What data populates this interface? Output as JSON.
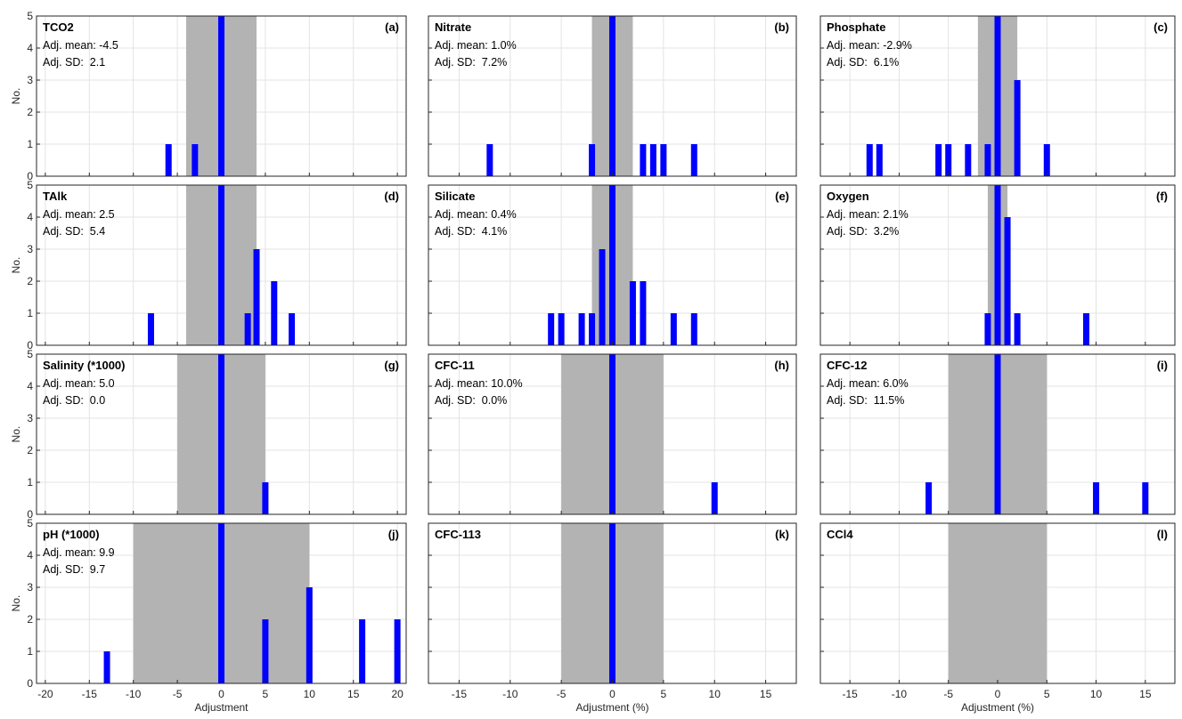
{
  "figure": {
    "colors": {
      "shade": "#b3b3b3",
      "bar": "#0000ff",
      "grid": "#e3e3e3",
      "axis": "#262626",
      "background": "#ffffff"
    }
  },
  "chart_data": [
    {
      "id": "a",
      "type": "bar",
      "title": "TCO2",
      "panel_label": "(a)",
      "mean_text": "Adj. mean: -4.5",
      "sd_text": "Adj. SD:  2.1",
      "xlim": [
        -21,
        21
      ],
      "ylim": [
        0,
        5
      ],
      "shade": [
        -4,
        4
      ],
      "ylabel": "No.",
      "xlabel": "",
      "bars": [
        {
          "x": -6,
          "y": 1
        },
        {
          "x": -3,
          "y": 1
        },
        {
          "x": 0,
          "y": 5
        }
      ]
    },
    {
      "id": "b",
      "type": "bar",
      "title": "Nitrate",
      "panel_label": "(b)",
      "mean_text": "Adj. mean: 1.0%",
      "sd_text": "Adj. SD:  7.2%",
      "xlim": [
        -18,
        18
      ],
      "ylim": [
        0,
        5
      ],
      "shade": [
        -2,
        2
      ],
      "ylabel": "",
      "xlabel": "",
      "bars": [
        {
          "x": -12,
          "y": 1
        },
        {
          "x": -2,
          "y": 1
        },
        {
          "x": 0,
          "y": 5
        },
        {
          "x": 3,
          "y": 1
        },
        {
          "x": 4,
          "y": 1
        },
        {
          "x": 5,
          "y": 1
        },
        {
          "x": 8,
          "y": 1
        }
      ]
    },
    {
      "id": "c",
      "type": "bar",
      "title": "Phosphate",
      "panel_label": "(c)",
      "mean_text": "Adj. mean: -2.9%",
      "sd_text": "Adj. SD:  6.1%",
      "xlim": [
        -18,
        18
      ],
      "ylim": [
        0,
        5
      ],
      "shade": [
        -2,
        2
      ],
      "ylabel": "",
      "xlabel": "",
      "bars": [
        {
          "x": -13,
          "y": 1
        },
        {
          "x": -12,
          "y": 1
        },
        {
          "x": -6,
          "y": 1
        },
        {
          "x": -5,
          "y": 1
        },
        {
          "x": -3,
          "y": 1
        },
        {
          "x": -1,
          "y": 1
        },
        {
          "x": 0,
          "y": 5
        },
        {
          "x": 2,
          "y": 3
        },
        {
          "x": 5,
          "y": 1
        }
      ]
    },
    {
      "id": "d",
      "type": "bar",
      "title": "TAlk",
      "panel_label": "(d)",
      "mean_text": "Adj. mean: 2.5",
      "sd_text": "Adj. SD:  5.4",
      "xlim": [
        -21,
        21
      ],
      "ylim": [
        0,
        5
      ],
      "shade": [
        -4,
        4
      ],
      "ylabel": "No.",
      "xlabel": "",
      "bars": [
        {
          "x": -8,
          "y": 1
        },
        {
          "x": 0,
          "y": 5
        },
        {
          "x": 3,
          "y": 1
        },
        {
          "x": 4,
          "y": 3
        },
        {
          "x": 6,
          "y": 2
        },
        {
          "x": 8,
          "y": 1
        }
      ]
    },
    {
      "id": "e",
      "type": "bar",
      "title": "Silicate",
      "panel_label": "(e)",
      "mean_text": "Adj. mean: 0.4%",
      "sd_text": "Adj. SD:  4.1%",
      "xlim": [
        -18,
        18
      ],
      "ylim": [
        0,
        5
      ],
      "shade": [
        -2,
        2
      ],
      "ylabel": "",
      "xlabel": "",
      "bars": [
        {
          "x": -6,
          "y": 1
        },
        {
          "x": -5,
          "y": 1
        },
        {
          "x": -3,
          "y": 1
        },
        {
          "x": -2,
          "y": 1
        },
        {
          "x": -1,
          "y": 3
        },
        {
          "x": 0,
          "y": 5
        },
        {
          "x": 2,
          "y": 2
        },
        {
          "x": 3,
          "y": 2
        },
        {
          "x": 6,
          "y": 1
        },
        {
          "x": 8,
          "y": 1
        }
      ]
    },
    {
      "id": "f",
      "type": "bar",
      "title": "Oxygen",
      "panel_label": "(f)",
      "mean_text": "Adj. mean: 2.1%",
      "sd_text": "Adj. SD:  3.2%",
      "xlim": [
        -18,
        18
      ],
      "ylim": [
        0,
        5
      ],
      "shade": [
        -1,
        1
      ],
      "ylabel": "",
      "xlabel": "",
      "bars": [
        {
          "x": -1,
          "y": 1
        },
        {
          "x": 0,
          "y": 5
        },
        {
          "x": 1,
          "y": 4
        },
        {
          "x": 2,
          "y": 1
        },
        {
          "x": 9,
          "y": 1
        }
      ]
    },
    {
      "id": "g",
      "type": "bar",
      "title": "Salinity (*1000)",
      "panel_label": "(g)",
      "mean_text": "Adj. mean: 5.0",
      "sd_text": "Adj. SD:  0.0",
      "xlim": [
        -21,
        21
      ],
      "ylim": [
        0,
        5
      ],
      "shade": [
        -5,
        5
      ],
      "ylabel": "No.",
      "xlabel": "",
      "bars": [
        {
          "x": 0,
          "y": 5
        },
        {
          "x": 5,
          "y": 1
        }
      ]
    },
    {
      "id": "h",
      "type": "bar",
      "title": "CFC-11",
      "panel_label": "(h)",
      "mean_text": "Adj. mean: 10.0%",
      "sd_text": "Adj. SD:  0.0%",
      "xlim": [
        -18,
        18
      ],
      "ylim": [
        0,
        5
      ],
      "shade": [
        -5,
        5
      ],
      "ylabel": "",
      "xlabel": "",
      "bars": [
        {
          "x": 0,
          "y": 5
        },
        {
          "x": 10,
          "y": 1
        }
      ]
    },
    {
      "id": "i",
      "type": "bar",
      "title": "CFC-12",
      "panel_label": "(i)",
      "mean_text": "Adj. mean: 6.0%",
      "sd_text": "Adj. SD:  11.5%",
      "xlim": [
        -18,
        18
      ],
      "ylim": [
        0,
        5
      ],
      "shade": [
        -5,
        5
      ],
      "ylabel": "",
      "xlabel": "",
      "bars": [
        {
          "x": -7,
          "y": 1
        },
        {
          "x": 0,
          "y": 5
        },
        {
          "x": 10,
          "y": 1
        },
        {
          "x": 15,
          "y": 1
        }
      ]
    },
    {
      "id": "j",
      "type": "bar",
      "title": "pH (*1000)",
      "panel_label": "(j)",
      "mean_text": "Adj. mean: 9.9",
      "sd_text": "Adj. SD:  9.7",
      "xlim": [
        -21,
        21
      ],
      "ylim": [
        0,
        5
      ],
      "shade": [
        -10,
        10
      ],
      "ylabel": "No.",
      "xlabel": "Adjustment",
      "xticks": [
        -20,
        -15,
        -10,
        -5,
        0,
        5,
        10,
        15,
        20
      ],
      "yticks": [
        0,
        1,
        2,
        3,
        4,
        5
      ],
      "bars": [
        {
          "x": -13,
          "y": 1
        },
        {
          "x": 0,
          "y": 5
        },
        {
          "x": 5,
          "y": 2
        },
        {
          "x": 10,
          "y": 3
        },
        {
          "x": 16,
          "y": 2
        },
        {
          "x": 20,
          "y": 2
        }
      ]
    },
    {
      "id": "k",
      "type": "bar",
      "title": "CFC-113",
      "panel_label": "(k)",
      "mean_text": "",
      "sd_text": "",
      "xlim": [
        -18,
        18
      ],
      "ylim": [
        0,
        5
      ],
      "shade": [
        -5,
        5
      ],
      "ylabel": "",
      "xlabel": "Adjustment (%)",
      "xticks": [
        -15,
        -10,
        -5,
        0,
        5,
        10,
        15
      ],
      "bars": [
        {
          "x": 0,
          "y": 5
        }
      ]
    },
    {
      "id": "l",
      "type": "bar",
      "title": "CCl4",
      "panel_label": "(l)",
      "mean_text": "",
      "sd_text": "",
      "xlim": [
        -18,
        18
      ],
      "ylim": [
        0,
        5
      ],
      "shade": [
        -5,
        5
      ],
      "ylabel": "",
      "xlabel": "Adjustment (%)",
      "xticks": [
        -15,
        -10,
        -5,
        0,
        5,
        10,
        15
      ],
      "bars": []
    }
  ]
}
